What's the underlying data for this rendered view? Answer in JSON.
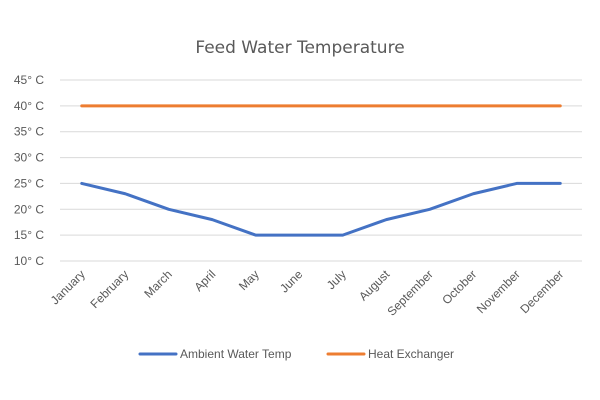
{
  "chart_data": {
    "type": "line",
    "title": "Feed Water Temperature",
    "xlabel": "",
    "ylabel": "",
    "categories": [
      "January",
      "February",
      "March",
      "April",
      "May",
      "June",
      "July",
      "August",
      "September",
      "October",
      "November",
      "December"
    ],
    "y_ticks": [
      10,
      15,
      20,
      25,
      30,
      35,
      40,
      45
    ],
    "y_tick_labels": [
      "10° C",
      "15° C",
      "20° C",
      "25° C",
      "30° C",
      "35° C",
      "40° C",
      "45° C"
    ],
    "ylim": [
      10,
      45
    ],
    "grid": true,
    "legend_position": "bottom",
    "series": [
      {
        "name": "Ambient Water Temp",
        "color": "#4472c4",
        "values": [
          25,
          23,
          20,
          18,
          15,
          15,
          15,
          18,
          20,
          23,
          25,
          25
        ]
      },
      {
        "name": "Heat Exchanger",
        "color": "#ed7d31",
        "values": [
          40,
          40,
          40,
          40,
          40,
          40,
          40,
          40,
          40,
          40,
          40,
          40
        ]
      }
    ]
  }
}
